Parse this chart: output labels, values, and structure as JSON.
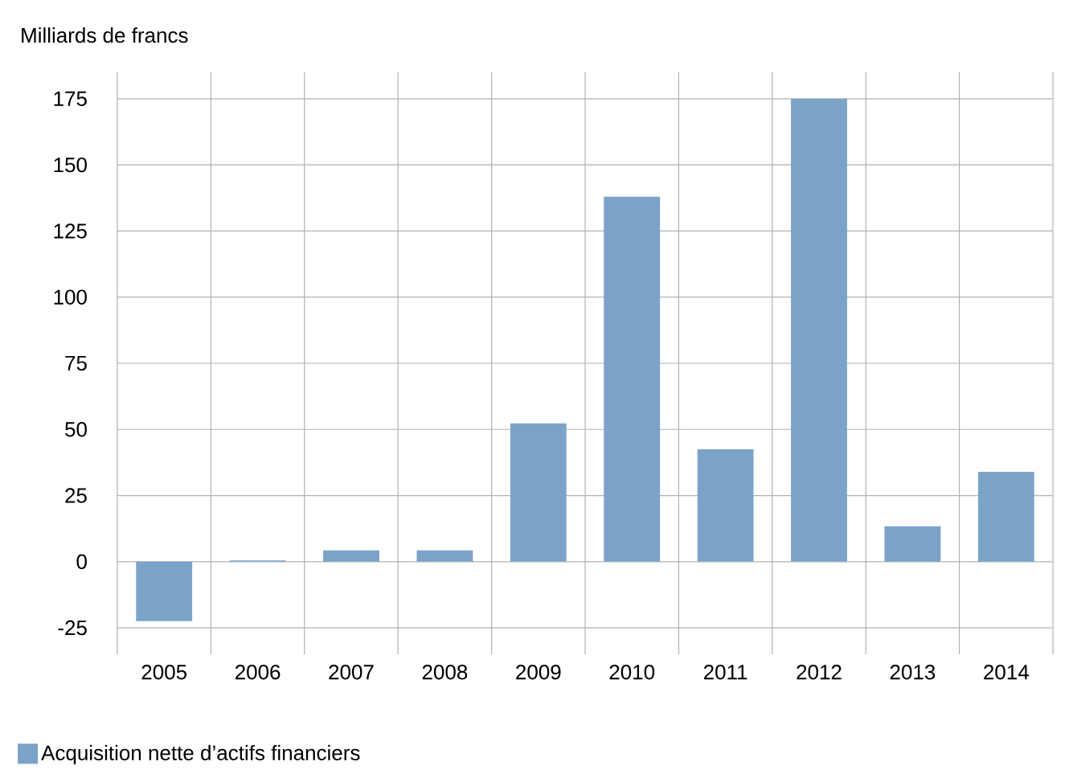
{
  "chart_data": {
    "type": "bar",
    "ylabel": "Milliards de francs",
    "categories": [
      "2005",
      "2006",
      "2007",
      "2008",
      "2009",
      "2010",
      "2011",
      "2012",
      "2013",
      "2014"
    ],
    "series": [
      {
        "name": "Acquisition nette d’actifs financiers",
        "color": "#7ba3c8",
        "values": [
          -22.5,
          0.5,
          4.3,
          4.3,
          52.3,
          138,
          42.5,
          175,
          13.4,
          34
        ]
      }
    ],
    "ylim": [
      -35,
      185
    ],
    "yticks": [
      -25,
      0,
      25,
      50,
      75,
      100,
      125,
      150,
      175
    ],
    "grid": true,
    "legend": "bottom"
  }
}
